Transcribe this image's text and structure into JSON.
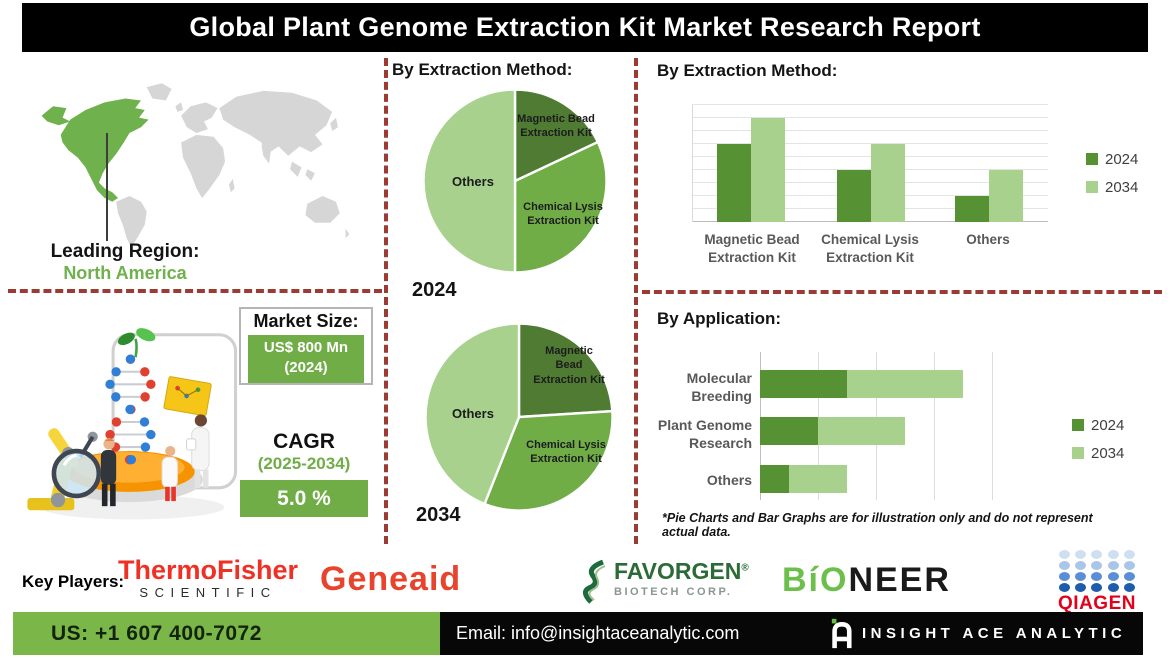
{
  "title": "Global Plant Genome Extraction Kit Market Research Report",
  "map": {
    "leading_region_label": "Leading Region:",
    "leading_region_value": "North America",
    "highlight_color": "#6fb14c",
    "land_color": "#d6d6d6"
  },
  "market_size": {
    "label": "Market Size:",
    "value_line1": "US$ 800 Mn",
    "value_line2": "(2024)",
    "box_color": "#70ad47"
  },
  "cagr": {
    "label": "CAGR",
    "period": "(2025-2034)",
    "value": "5.0 %",
    "box_color": "#70ad47"
  },
  "sections": {
    "pie_header": "By Extraction Method:",
    "bar_header": "By Extraction Method:",
    "application_header": "By Application:"
  },
  "chart_data": [
    {
      "type": "pie",
      "year_label": "2024",
      "legend_position": "inside",
      "slices": [
        {
          "label": "Magnetic Bead Extraction Kit",
          "label_lines": [
            "Magnetic Bead",
            "Extraction Kit"
          ],
          "value": 18,
          "color": "#4f7b33"
        },
        {
          "label": "Chemical Lysis Extraction Kit",
          "label_lines": [
            "Chemical Lysis",
            "Extraction Kit"
          ],
          "value": 32,
          "color": "#70ad47"
        },
        {
          "label": "Others",
          "label_lines": [
            "Others"
          ],
          "value": 50,
          "color": "#a9d18e"
        }
      ]
    },
    {
      "type": "pie",
      "year_label": "2034",
      "legend_position": "inside",
      "slices": [
        {
          "label": "Magnetic Bead Extraction Kit",
          "label_lines": [
            "Magnetic",
            "Bead",
            "Extraction Kit"
          ],
          "value": 24,
          "color": "#4f7b33"
        },
        {
          "label": "Chemical Lysis Extraction Kit",
          "label_lines": [
            "Chemical Lysis",
            "Extraction Kit"
          ],
          "value": 32,
          "color": "#70ad47"
        },
        {
          "label": "Others",
          "label_lines": [
            "Others"
          ],
          "value": 44,
          "color": "#a9d18e"
        }
      ]
    },
    {
      "type": "bar",
      "title": "By Extraction Method:",
      "categories": [
        "Magnetic Bead Extraction Kit",
        "Chemical Lysis Extraction Kit",
        "Others"
      ],
      "series": [
        {
          "name": "2024",
          "color": "#569133",
          "values": [
            30,
            20,
            10
          ]
        },
        {
          "name": "2034",
          "color": "#a9d18e",
          "values": [
            40,
            30,
            20
          ]
        }
      ],
      "ylim": [
        0,
        45
      ],
      "gridline_step": 5,
      "grid": true,
      "legend_position": "right",
      "xlabel": "",
      "ylabel": ""
    },
    {
      "type": "stacked-bar-horizontal",
      "title": "By Application:",
      "categories": [
        "Molecular Breeding",
        "Plant Genome Research",
        "Others"
      ],
      "series": [
        {
          "name": "2024",
          "color": "#569133",
          "values": [
            15,
            10,
            5
          ]
        },
        {
          "name": "2034",
          "color": "#a9d18e",
          "values": [
            20,
            15,
            10
          ]
        }
      ],
      "xlim": [
        0,
        40
      ],
      "gridline_step": 10,
      "grid": true,
      "legend_position": "right",
      "xlabel": "",
      "ylabel": ""
    }
  ],
  "footnote": "*Pie Charts and Bar Graphs are for illustration only and do not represent actual data.",
  "key_players": {
    "label": "Key Players:",
    "companies": [
      "Thermo Fisher Scientific",
      "Geneaid",
      "Favorgen Biotech Corp.",
      "Bioneer",
      "Qiagen"
    ]
  },
  "logos": {
    "thermofisher": {
      "line1": "ThermoFisher",
      "line2": "SCIENTIFIC",
      "color": "#ee3124"
    },
    "geneaid": {
      "text": "Geneaid",
      "color": "#e8432d"
    },
    "favorgen": {
      "text": "FAVORGEN",
      "reg": "®",
      "sub": "BIOTECH CORP.",
      "color": "#2c6b37"
    },
    "bioneer": {
      "green_part": "BíO",
      "black_part": "NEER",
      "green": "#6cbf4b"
    },
    "qiagen": {
      "text": "QIAGEN",
      "color": "#e2001a",
      "dot_rows": [
        "#cfdff2",
        "#a9c6e8",
        "#5b8fd4",
        "#1e5dab"
      ]
    }
  },
  "footer": {
    "phone": "US: +1 607 400-7072",
    "email": "Email: info@insightaceanalytic.com",
    "brand": "INSIGHT ACE ANALYTIC",
    "green": "#7ab648"
  }
}
